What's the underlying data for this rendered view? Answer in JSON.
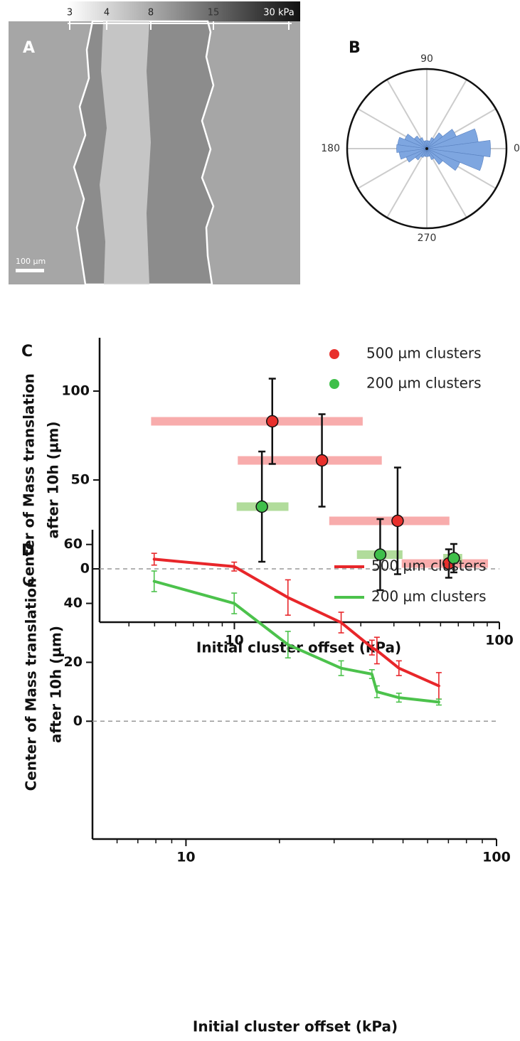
{
  "panel_a": {
    "label": "A",
    "scale_labels": [
      "3",
      "4",
      "8",
      "15",
      "30 kPa"
    ],
    "scale_bar": "100 µm"
  },
  "chart_data": [
    {
      "type": "polar_histogram",
      "label": "B",
      "theta": [
        0,
        15,
        30,
        45,
        60,
        75,
        90,
        105,
        120,
        135,
        150,
        165,
        180,
        195,
        210,
        225,
        240,
        255,
        270,
        285,
        300,
        315,
        330,
        345
      ],
      "values": [
        0.8,
        0.65,
        0.4,
        0.25,
        0.15,
        0.1,
        0.1,
        0.1,
        0.15,
        0.2,
        0.3,
        0.37,
        0.38,
        0.35,
        0.28,
        0.18,
        0.12,
        0.1,
        0.1,
        0.1,
        0.15,
        0.25,
        0.45,
        0.72
      ],
      "bin_width": 15,
      "rlim": [
        0,
        1
      ],
      "thetaticks": [
        0,
        90,
        180,
        270
      ],
      "thetagrid": [
        0,
        30,
        60,
        90,
        120,
        150,
        180,
        210,
        240,
        270,
        300,
        330
      ],
      "color": "#7ea6e0"
    },
    {
      "type": "scatter",
      "label": "C",
      "xlabel": "Initial cluster offset (kPa)",
      "ylabel": [
        "Center of Mass translation",
        "after 10h (µm)"
      ],
      "xscale": "log",
      "xlim": [
        3.1,
        100
      ],
      "ylim": [
        -30,
        130
      ],
      "xticks": [
        10,
        100
      ],
      "minor_xticks": [
        4,
        5,
        6,
        7,
        8,
        9,
        20,
        30,
        40,
        50,
        60,
        70,
        80,
        90
      ],
      "yticks": [
        0,
        50,
        100
      ],
      "ref_line": 0,
      "legend": "upper right",
      "series": [
        {
          "name": "500 µm clusters",
          "color": "#e8302c",
          "band_color": "#f7a3a3",
          "x": [
            13.9,
            21.4,
            41.3,
            64.4
          ],
          "values": [
            83,
            61,
            27,
            3
          ],
          "errors": [
            24,
            26,
            30,
            8
          ],
          "x_low": [
            4.85,
            10.3,
            22.8,
            42.8
          ],
          "x_high": [
            30.5,
            36.0,
            64.8,
            90.6
          ]
        },
        {
          "name": "200 µm clusters",
          "color": "#3fbf4a",
          "band_color": "#a8d890",
          "x": [
            12.7,
            35.5,
            67.3
          ],
          "values": [
            35,
            8,
            6
          ],
          "errors": [
            31,
            20,
            8
          ],
          "x_low": [
            10.2,
            29.0,
            61.4
          ],
          "x_high": [
            16.0,
            43.1,
            72.4
          ]
        }
      ]
    },
    {
      "type": "line",
      "label": "D",
      "xlabel": "Initial cluster offset (kPa)",
      "ylabel": [
        "Center of Mass translation",
        "after 10h (µm)"
      ],
      "xscale": "log",
      "xlim": [
        5,
        100
      ],
      "ylim": [
        -40,
        65
      ],
      "xticks": [
        10,
        100
      ],
      "minor_xticks": [
        6,
        7,
        8,
        9,
        20,
        30,
        40,
        50,
        60,
        70,
        80,
        90
      ],
      "yticks": [
        0,
        20,
        40,
        60
      ],
      "ref_line": 0,
      "legend": "upper right",
      "series": [
        {
          "name": "500 µm clusters",
          "color": "#e8262a",
          "x": [
            7.9,
            14.3,
            21.3,
            31.6,
            39.7,
            41.2,
            48.5,
            65.2
          ],
          "values": [
            55,
            52.5,
            42,
            33.5,
            25,
            24,
            18,
            12
          ],
          "errors": [
            2,
            1.5,
            6,
            3.5,
            2.5,
            4.5,
            2.5,
            4.5
          ]
        },
        {
          "name": "200 µm clusters",
          "color": "#4cc24c",
          "x": [
            7.9,
            14.3,
            21.3,
            31.6,
            39.7,
            41.2,
            48.5,
            65.2
          ],
          "values": [
            47.5,
            40,
            26,
            18,
            16,
            10,
            8,
            6.5
          ],
          "errors": [
            3.5,
            3.5,
            4.5,
            2.5,
            1.5,
            2,
            1.5,
            1
          ]
        }
      ]
    }
  ]
}
